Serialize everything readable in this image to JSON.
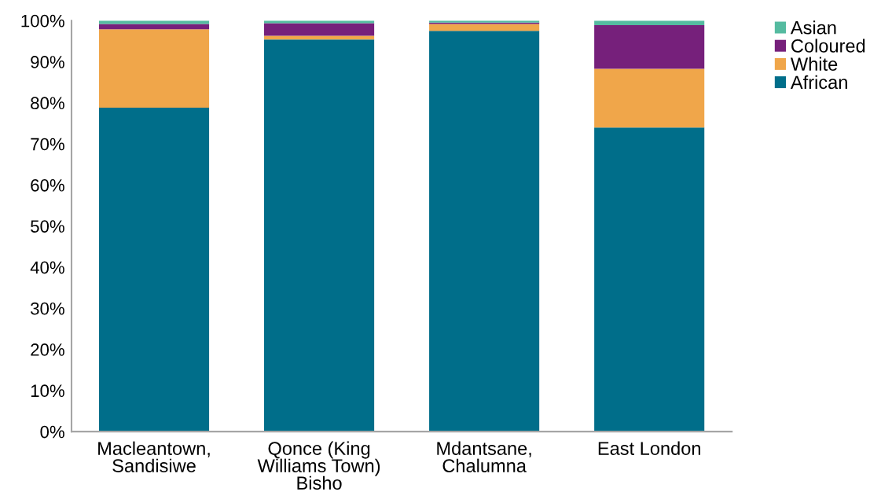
{
  "chart_data": {
    "type": "bar",
    "stacked": true,
    "categories": [
      "Macleantown,\nSandisiwe",
      "Qonce (King\nWilliams Town)\nBisho",
      "Mdantsane,\nChalumna",
      "East London"
    ],
    "series": [
      {
        "name": "African",
        "color": "#006e8a",
        "values": [
          78.8,
          95.4,
          97.5,
          74.0
        ]
      },
      {
        "name": "White",
        "color": "#f0a64a",
        "values": [
          19.1,
          0.9,
          1.7,
          14.3
        ]
      },
      {
        "name": "Coloured",
        "color": "#76207b",
        "values": [
          1.3,
          3.1,
          0.3,
          10.6
        ]
      },
      {
        "name": "Asian",
        "color": "#55bba0",
        "values": [
          0.8,
          0.6,
          0.5,
          1.1
        ]
      }
    ],
    "ylim": [
      0,
      100
    ],
    "yticks": [
      {
        "value": 0,
        "label": "0%"
      },
      {
        "value": 10,
        "label": "10%"
      },
      {
        "value": 20,
        "label": "20%"
      },
      {
        "value": 30,
        "label": "30%"
      },
      {
        "value": 40,
        "label": "40%"
      },
      {
        "value": 50,
        "label": "50%"
      },
      {
        "value": 60,
        "label": "60%"
      },
      {
        "value": 70,
        "label": "70%"
      },
      {
        "value": 80,
        "label": "80%"
      },
      {
        "value": 90,
        "label": "90%"
      },
      {
        "value": 100,
        "label": "100%"
      }
    ],
    "grid": false,
    "legend": "top right"
  }
}
